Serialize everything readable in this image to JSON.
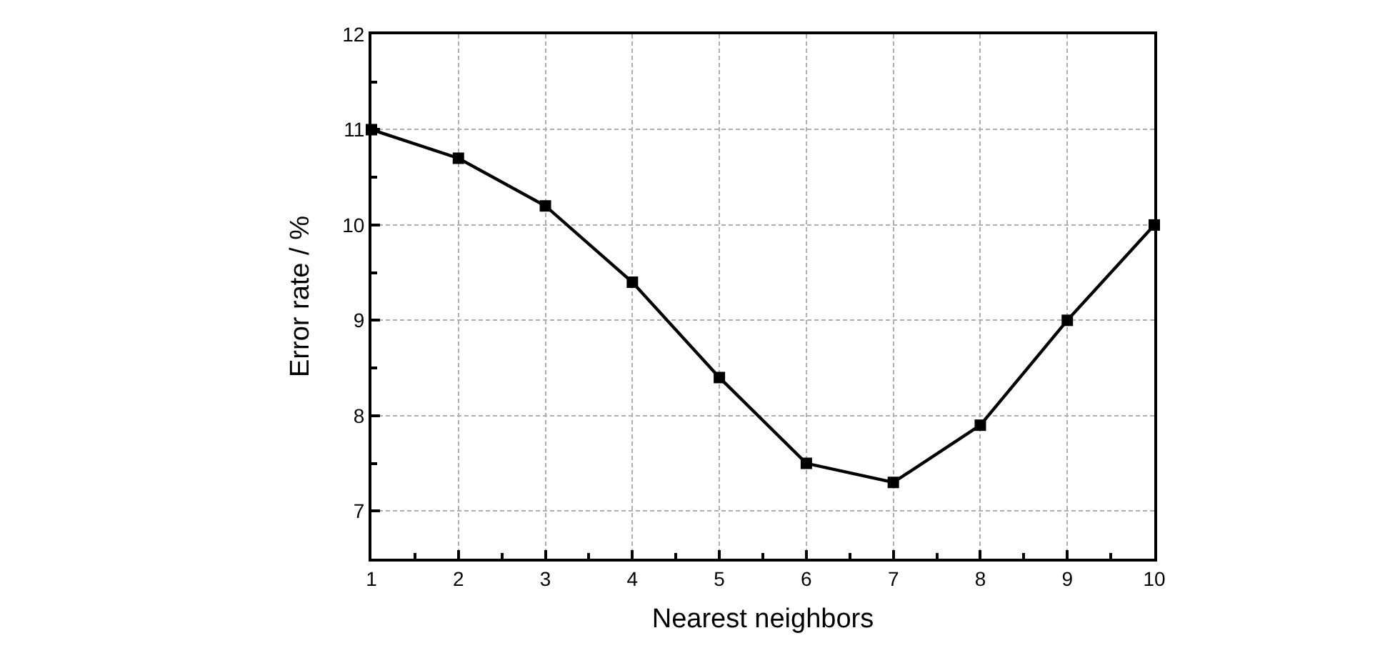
{
  "chart_data": {
    "type": "line",
    "xlabel": "Nearest neighbors",
    "ylabel": "Error rate / %",
    "x": [
      1,
      2,
      3,
      4,
      5,
      6,
      7,
      8,
      9,
      10
    ],
    "series": [
      {
        "color": "#000000",
        "values": [
          11,
          10.7,
          10.2,
          9.4,
          8.4,
          7.5,
          7.3,
          7.9,
          9,
          10
        ]
      }
    ],
    "xlim": [
      1,
      10
    ],
    "xticks": [
      1,
      2,
      3,
      4,
      5,
      6,
      7,
      8,
      9,
      10
    ],
    "ylim": [
      6.5,
      12
    ],
    "yticks": [
      7,
      8,
      9,
      10,
      11,
      12
    ],
    "grid": true,
    "marker": "square",
    "line_style": "solid"
  }
}
